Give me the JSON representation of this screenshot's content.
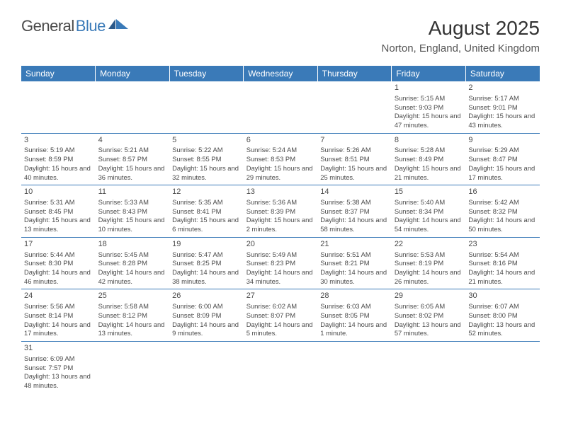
{
  "logo": {
    "text1": "General",
    "text2": "Blue"
  },
  "title": "August 2025",
  "location": "Norton, England, United Kingdom",
  "colors": {
    "header_bg": "#3a7ab8",
    "header_text": "#ffffff",
    "text": "#4a4a4a",
    "border": "#3a7ab8",
    "logo_gray": "#4a4a4a",
    "logo_blue": "#3a7ab8",
    "background": "#ffffff"
  },
  "dayHeaders": [
    "Sunday",
    "Monday",
    "Tuesday",
    "Wednesday",
    "Thursday",
    "Friday",
    "Saturday"
  ],
  "weeks": [
    [
      null,
      null,
      null,
      null,
      null,
      {
        "n": "1",
        "sr": "5:15 AM",
        "ss": "9:03 PM",
        "dl": "15 hours and 47 minutes."
      },
      {
        "n": "2",
        "sr": "5:17 AM",
        "ss": "9:01 PM",
        "dl": "15 hours and 43 minutes."
      }
    ],
    [
      {
        "n": "3",
        "sr": "5:19 AM",
        "ss": "8:59 PM",
        "dl": "15 hours and 40 minutes."
      },
      {
        "n": "4",
        "sr": "5:21 AM",
        "ss": "8:57 PM",
        "dl": "15 hours and 36 minutes."
      },
      {
        "n": "5",
        "sr": "5:22 AM",
        "ss": "8:55 PM",
        "dl": "15 hours and 32 minutes."
      },
      {
        "n": "6",
        "sr": "5:24 AM",
        "ss": "8:53 PM",
        "dl": "15 hours and 29 minutes."
      },
      {
        "n": "7",
        "sr": "5:26 AM",
        "ss": "8:51 PM",
        "dl": "15 hours and 25 minutes."
      },
      {
        "n": "8",
        "sr": "5:28 AM",
        "ss": "8:49 PM",
        "dl": "15 hours and 21 minutes."
      },
      {
        "n": "9",
        "sr": "5:29 AM",
        "ss": "8:47 PM",
        "dl": "15 hours and 17 minutes."
      }
    ],
    [
      {
        "n": "10",
        "sr": "5:31 AM",
        "ss": "8:45 PM",
        "dl": "15 hours and 13 minutes."
      },
      {
        "n": "11",
        "sr": "5:33 AM",
        "ss": "8:43 PM",
        "dl": "15 hours and 10 minutes."
      },
      {
        "n": "12",
        "sr": "5:35 AM",
        "ss": "8:41 PM",
        "dl": "15 hours and 6 minutes."
      },
      {
        "n": "13",
        "sr": "5:36 AM",
        "ss": "8:39 PM",
        "dl": "15 hours and 2 minutes."
      },
      {
        "n": "14",
        "sr": "5:38 AM",
        "ss": "8:37 PM",
        "dl": "14 hours and 58 minutes."
      },
      {
        "n": "15",
        "sr": "5:40 AM",
        "ss": "8:34 PM",
        "dl": "14 hours and 54 minutes."
      },
      {
        "n": "16",
        "sr": "5:42 AM",
        "ss": "8:32 PM",
        "dl": "14 hours and 50 minutes."
      }
    ],
    [
      {
        "n": "17",
        "sr": "5:44 AM",
        "ss": "8:30 PM",
        "dl": "14 hours and 46 minutes."
      },
      {
        "n": "18",
        "sr": "5:45 AM",
        "ss": "8:28 PM",
        "dl": "14 hours and 42 minutes."
      },
      {
        "n": "19",
        "sr": "5:47 AM",
        "ss": "8:25 PM",
        "dl": "14 hours and 38 minutes."
      },
      {
        "n": "20",
        "sr": "5:49 AM",
        "ss": "8:23 PM",
        "dl": "14 hours and 34 minutes."
      },
      {
        "n": "21",
        "sr": "5:51 AM",
        "ss": "8:21 PM",
        "dl": "14 hours and 30 minutes."
      },
      {
        "n": "22",
        "sr": "5:53 AM",
        "ss": "8:19 PM",
        "dl": "14 hours and 26 minutes."
      },
      {
        "n": "23",
        "sr": "5:54 AM",
        "ss": "8:16 PM",
        "dl": "14 hours and 21 minutes."
      }
    ],
    [
      {
        "n": "24",
        "sr": "5:56 AM",
        "ss": "8:14 PM",
        "dl": "14 hours and 17 minutes."
      },
      {
        "n": "25",
        "sr": "5:58 AM",
        "ss": "8:12 PM",
        "dl": "14 hours and 13 minutes."
      },
      {
        "n": "26",
        "sr": "6:00 AM",
        "ss": "8:09 PM",
        "dl": "14 hours and 9 minutes."
      },
      {
        "n": "27",
        "sr": "6:02 AM",
        "ss": "8:07 PM",
        "dl": "14 hours and 5 minutes."
      },
      {
        "n": "28",
        "sr": "6:03 AM",
        "ss": "8:05 PM",
        "dl": "14 hours and 1 minute."
      },
      {
        "n": "29",
        "sr": "6:05 AM",
        "ss": "8:02 PM",
        "dl": "13 hours and 57 minutes."
      },
      {
        "n": "30",
        "sr": "6:07 AM",
        "ss": "8:00 PM",
        "dl": "13 hours and 52 minutes."
      }
    ],
    [
      {
        "n": "31",
        "sr": "6:09 AM",
        "ss": "7:57 PM",
        "dl": "13 hours and 48 minutes."
      },
      null,
      null,
      null,
      null,
      null,
      null
    ]
  ],
  "labels": {
    "sunrise": "Sunrise:",
    "sunset": "Sunset:",
    "daylight": "Daylight:"
  }
}
